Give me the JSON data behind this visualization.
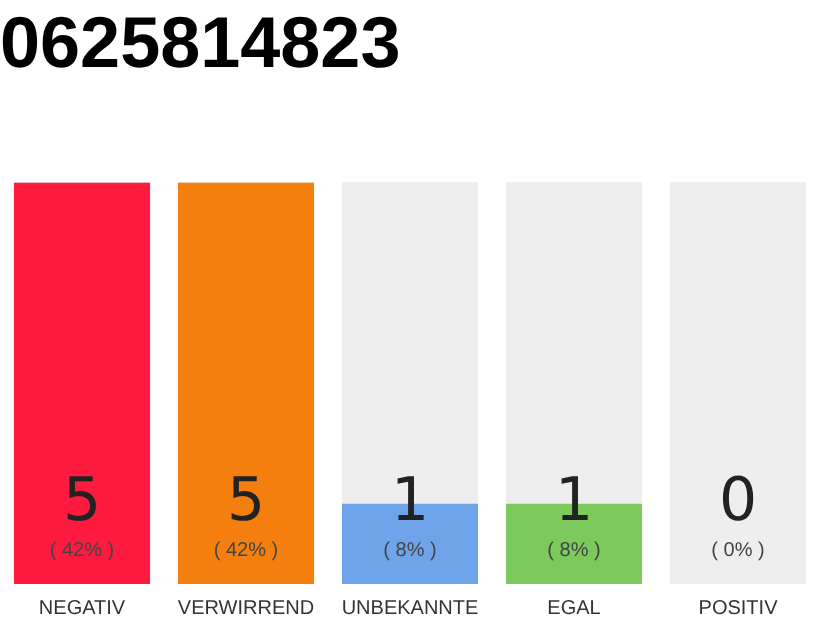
{
  "chart_data": {
    "type": "bar",
    "title": "0625814823",
    "categories": [
      "NEGATIV",
      "VERWIRREND",
      "UNBEKANNTE",
      "EGAL",
      "POSITIV"
    ],
    "values": [
      5,
      5,
      1,
      1,
      0
    ],
    "colors": [
      "#ff1a40",
      "#f57f0e",
      "#6fa3ea",
      "#7cc95c",
      "#dddddd"
    ],
    "data_labels": true,
    "annotations": [
      "( 42% )",
      "( 42% )",
      "( 8% )",
      "( 8% )",
      "( 0% )"
    ],
    "grid": false,
    "legend": false
  }
}
